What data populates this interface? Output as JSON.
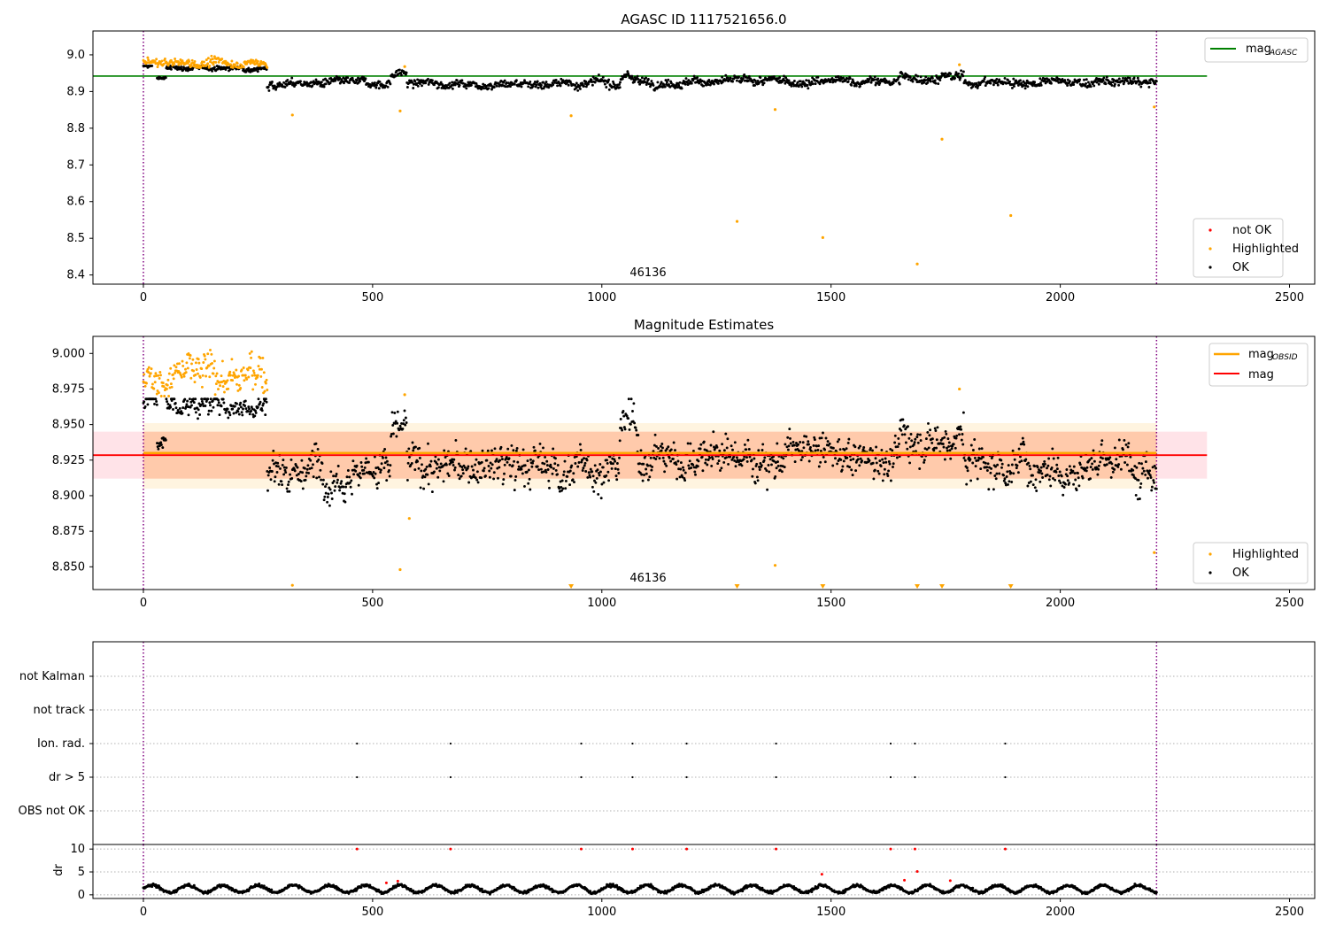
{
  "figure": {
    "panel1_title": "AGASC ID 1117521656.0",
    "panel2_title": "Magnitude Estimates",
    "obsid_label": "46136"
  },
  "legend1": {
    "not_ok": "not OK",
    "highlighted": "Highlighted",
    "ok": "OK",
    "mag_line_main": "mag",
    "mag_line_sub": "AGASC"
  },
  "legend2": {
    "mag_obsid_main": "mag",
    "mag_obsid_sub": "OBSID",
    "mag": "mag",
    "highlighted": "Highlighted",
    "ok": "OK"
  },
  "colors": {
    "ok": "#000000",
    "highlighted": "#ffa500",
    "not_ok": "#ff0000",
    "agasc_line": "#008000",
    "mag_line": "#ff0000",
    "mag_obsid_line": "#ffa500",
    "obs_boundary": "#800080",
    "pink_band": "#ffc0cb"
  },
  "chart_data": [
    {
      "type": "scatter",
      "title": "AGASC ID 1117521656.0",
      "x_ticks": [
        "0",
        "500",
        "1000",
        "1500",
        "2000",
        "2500"
      ],
      "y_ticks": [
        "8.4",
        "8.5",
        "8.6",
        "8.7",
        "8.8",
        "8.9",
        "9.0"
      ],
      "xlim": [
        -110,
        2555
      ],
      "ylim": [
        8.375,
        9.065
      ],
      "mag_agasc": 8.942,
      "obs_boundaries": [
        0,
        2210
      ],
      "obsid_annotation": {
        "text": "46136",
        "x": 1105,
        "y": 8.39
      },
      "series": [
        {
          "name": "not OK",
          "values": []
        },
        {
          "name": "Highlighted",
          "segments": [
            {
              "x_range": [
                0,
                270
              ],
              "mean": 8.978,
              "spread": 0.009
            }
          ],
          "outliers": [
            [
              325,
              8.836
            ],
            [
              560,
              8.847
            ],
            [
              570,
              8.968
            ],
            [
              933,
              8.834
            ],
            [
              1295,
              8.546
            ],
            [
              1378,
              8.851
            ],
            [
              1482,
              8.502
            ],
            [
              1688,
              8.43
            ],
            [
              1742,
              8.77
            ],
            [
              1780,
              8.973
            ],
            [
              1892,
              8.562
            ],
            [
              2205,
              8.858
            ]
          ]
        },
        {
          "name": "OK",
          "segments": [
            {
              "x_range": [
                0,
                20
              ],
              "mean": 8.968,
              "spread": 0.005
            },
            {
              "x_range": [
                30,
                50
              ],
              "mean": 8.937,
              "spread": 0.004
            },
            {
              "x_range": [
                50,
                270
              ],
              "mean": 8.964,
              "spread": 0.005
            },
            {
              "x_range": [
                270,
                540
              ],
              "mean": 8.922,
              "spread": 0.009
            },
            {
              "x_range": [
                540,
                575
              ],
              "mean": 8.95,
              "spread": 0.008
            },
            {
              "x_range": [
                575,
                1040
              ],
              "mean": 8.922,
              "spread": 0.009
            },
            {
              "x_range": [
                1040,
                1080
              ],
              "mean": 8.94,
              "spread": 0.01
            },
            {
              "x_range": [
                1080,
                1650
              ],
              "mean": 8.927,
              "spread": 0.009
            },
            {
              "x_range": [
                1650,
                1790
              ],
              "mean": 8.938,
              "spread": 0.01
            },
            {
              "x_range": [
                1790,
                2210
              ],
              "mean": 8.925,
              "spread": 0.009
            }
          ]
        }
      ]
    },
    {
      "type": "scatter",
      "title": "Magnitude Estimates",
      "x_ticks": [
        "0",
        "500",
        "1000",
        "1500",
        "2000",
        "2500"
      ],
      "y_ticks": [
        "8.850",
        "8.875",
        "8.900",
        "8.925",
        "8.950",
        "8.975",
        "9.000"
      ],
      "xlim": [
        -110,
        2555
      ],
      "ylim": [
        8.834,
        9.012
      ],
      "mag": 8.9285,
      "mag_band": [
        8.912,
        8.945
      ],
      "mag_obsid": 8.93,
      "mag_obsid_band_inner": [
        8.912,
        8.945
      ],
      "mag_obsid_band_outer": [
        8.905,
        8.951
      ],
      "mag_obsid_x_range": [
        0,
        2210
      ],
      "obs_boundaries": [
        0,
        2210
      ],
      "obsid_annotation": {
        "text": "46136",
        "x": 1105,
        "y": 8.84
      },
      "series": [
        {
          "name": "Highlighted",
          "segments": [
            {
              "x_range": [
                0,
                270
              ],
              "mean": 8.984,
              "spread": 0.01
            }
          ],
          "outliers": [
            [
              325,
              8.837
            ],
            [
              560,
              8.848
            ],
            [
              570,
              8.971
            ],
            [
              580,
              8.884
            ],
            [
              1378,
              8.851
            ],
            [
              1780,
              8.975
            ],
            [
              2205,
              8.86
            ]
          ],
          "below_axis_markers_x": [
            933,
            1295,
            1482,
            1688,
            1742,
            1892
          ]
        },
        {
          "name": "OK",
          "segments": [
            {
              "x_range": [
                0,
                30
              ],
              "mean": 8.966,
              "spread": 0.006
            },
            {
              "x_range": [
                30,
                50
              ],
              "mean": 8.936,
              "spread": 0.004
            },
            {
              "x_range": [
                50,
                270
              ],
              "mean": 8.964,
              "spread": 0.006
            },
            {
              "x_range": [
                270,
                540
              ],
              "mean": 8.92,
              "spread": 0.011
            },
            {
              "x_range": [
                540,
                575
              ],
              "mean": 8.945,
              "spread": 0.01
            },
            {
              "x_range": [
                575,
                1040
              ],
              "mean": 8.92,
              "spread": 0.011
            },
            {
              "x_range": [
                1040,
                1080
              ],
              "mean": 8.945,
              "spread": 0.012
            },
            {
              "x_range": [
                1080,
                1650
              ],
              "mean": 8.928,
              "spread": 0.01
            },
            {
              "x_range": [
                1650,
                1790
              ],
              "mean": 8.942,
              "spread": 0.011
            },
            {
              "x_range": [
                1790,
                2210
              ],
              "mean": 8.923,
              "spread": 0.011
            }
          ]
        }
      ]
    },
    {
      "type": "scatter",
      "title": "",
      "categories": [
        "not Kalman",
        "not track",
        "Ion. rad.",
        "dr > 5",
        "OBS not OK"
      ],
      "x_ticks": [
        "0",
        "500",
        "1000",
        "1500",
        "2000",
        "2500"
      ],
      "xlim": [
        -110,
        2555
      ],
      "grid": true,
      "obs_boundaries": [
        0,
        2210
      ],
      "flags": {
        "Ion. rad.": [
          466,
          670,
          955,
          1067,
          1185,
          1380,
          1630,
          1683,
          1880
        ],
        "dr > 5": [
          466,
          670,
          955,
          1067,
          1185,
          1380,
          1630,
          1683,
          1880
        ]
      }
    },
    {
      "type": "scatter",
      "title": "",
      "ylabel": "dr",
      "x_ticks": [
        "0",
        "500",
        "1000",
        "1500",
        "2000",
        "2500"
      ],
      "y_ticks": [
        "0",
        "5",
        "10"
      ],
      "xlim": [
        -110,
        2555
      ],
      "ylim": [
        -0.8,
        11
      ],
      "obs_boundaries": [
        0,
        2210
      ],
      "series": [
        {
          "name": "OK",
          "mean": 1.3,
          "amplitude": 0.8
        },
        {
          "name": "not OK",
          "points": [
            [
              466,
              10
            ],
            [
              670,
              10
            ],
            [
              955,
              10
            ],
            [
              1067,
              10
            ],
            [
              1185,
              10
            ],
            [
              1380,
              10
            ],
            [
              1630,
              10
            ],
            [
              1683,
              10
            ],
            [
              1880,
              10
            ],
            [
              530,
              2.6
            ],
            [
              555,
              3.0
            ],
            [
              1480,
              4.5
            ],
            [
              1660,
              3.2
            ],
            [
              1688,
              5.1
            ],
            [
              1760,
              3.1
            ]
          ]
        }
      ]
    }
  ]
}
